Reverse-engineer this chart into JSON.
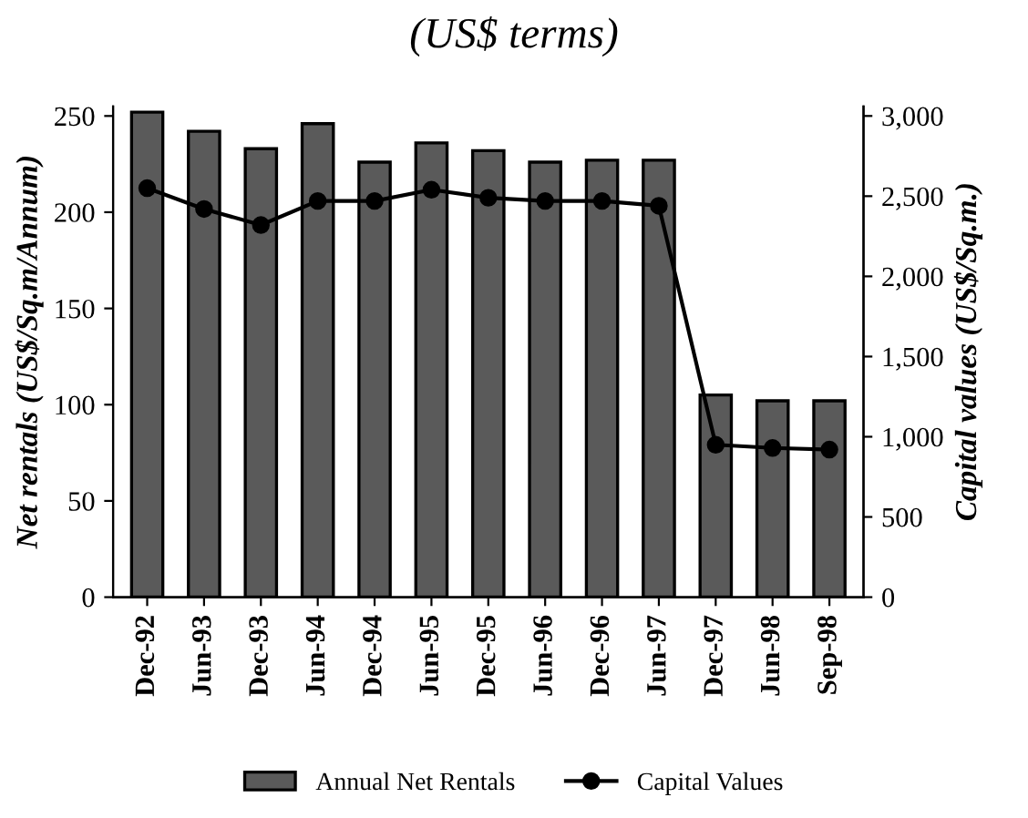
{
  "chart_data": {
    "type": "bar",
    "title": "(US$ terms)",
    "categories": [
      "Dec-92",
      "Jun-93",
      "Dec-93",
      "Jun-94",
      "Dec-94",
      "Jun-95",
      "Dec-95",
      "Jun-96",
      "Dec-96",
      "Jun-97",
      "Dec-97",
      "Jun-98",
      "Sep-98"
    ],
    "series": [
      {
        "name": "Annual Net Rentals",
        "color": "#5a5a5a",
        "values": [
          252,
          242,
          233,
          246,
          226,
          236,
          232,
          226,
          227,
          227,
          105,
          102,
          102
        ]
      },
      {
        "name": "Capital Values",
        "type": "line",
        "axis": "y2",
        "color": "#000000",
        "marker": "circle",
        "values": [
          2550,
          2420,
          2320,
          2470,
          2470,
          2540,
          2490,
          2470,
          2470,
          2440,
          950,
          930,
          920
        ]
      }
    ],
    "ylabel": "Net rentals (US$/Sq.m/Annum)",
    "y2label": "Capital values (US$/Sq.m.)",
    "ylim": [
      0,
      255
    ],
    "yticks": [
      0,
      50,
      100,
      150,
      200,
      250
    ],
    "y2lim": [
      0,
      3060
    ],
    "y2ticks": [
      {
        "value": 0,
        "label": "0"
      },
      {
        "value": 500,
        "label": "500"
      },
      {
        "value": 1000,
        "label": "1,000"
      },
      {
        "value": 1500,
        "label": "1,500"
      },
      {
        "value": 2000,
        "label": "2,000"
      },
      {
        "value": 2500,
        "label": "2,500"
      },
      {
        "value": 3000,
        "label": "3,000"
      }
    ],
    "legend": "bottom",
    "grid": false
  }
}
